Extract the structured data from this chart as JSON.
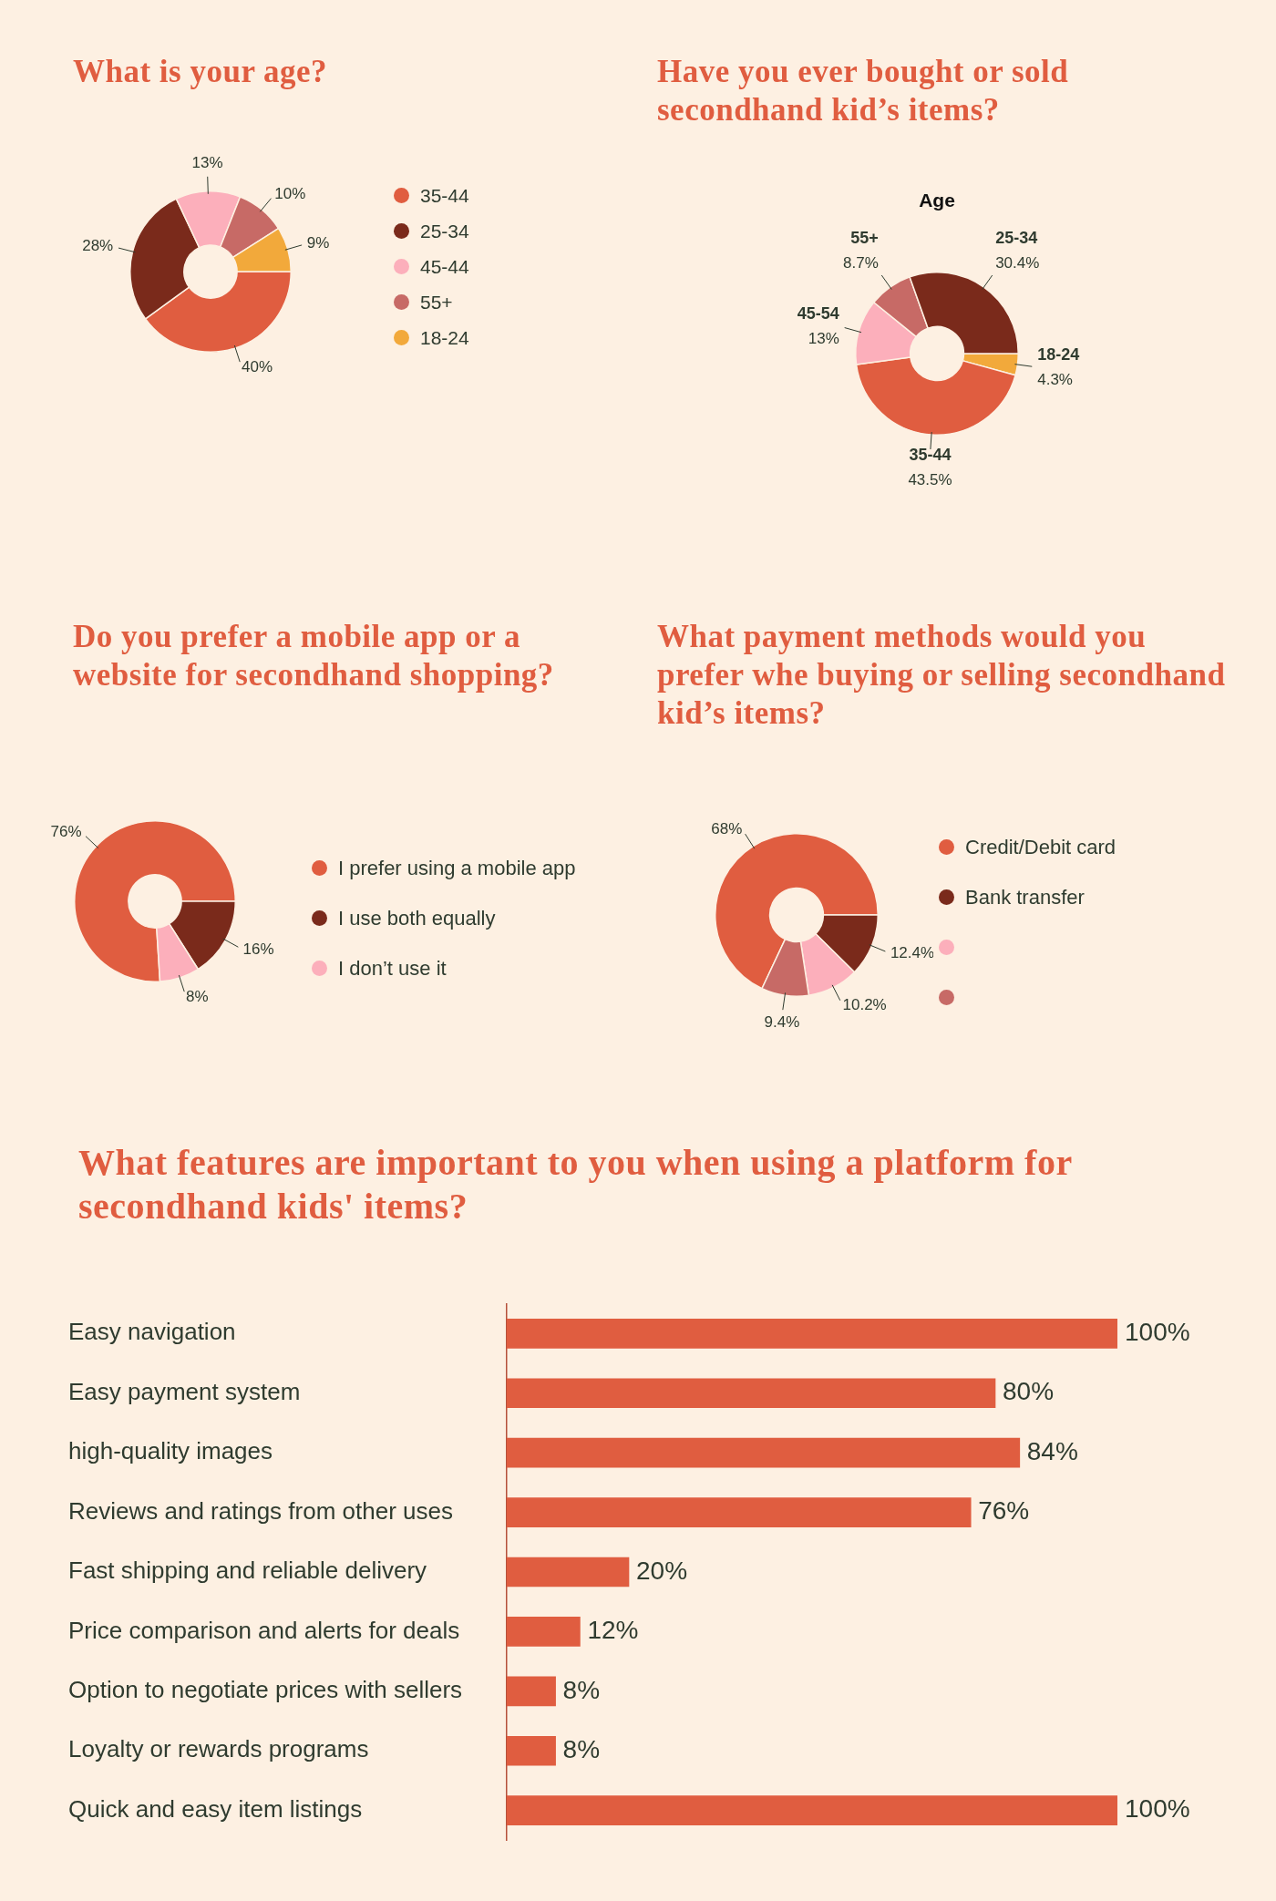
{
  "chart_data": [
    {
      "type": "donut",
      "title": "What is your age?",
      "categories": [
        "35-44",
        "25-34",
        "45-44",
        "55+",
        "18-24"
      ],
      "values": [
        40,
        28,
        13,
        10,
        9
      ],
      "colors": [
        "#e05d40",
        "#7a2a1b",
        "#fcafbb",
        "#c76a66",
        "#f2a93b"
      ],
      "value_labels": [
        "40%",
        "28%",
        "13%",
        "10%",
        "9%"
      ],
      "legend": "right"
    },
    {
      "type": "donut",
      "title": "Have you ever bought or sold secondhand kid’s items?",
      "subtitle": "Age",
      "categories": [
        "18-24",
        "35-44",
        "45-54",
        "55+",
        "25-34"
      ],
      "values": [
        4.3,
        43.5,
        13,
        8.7,
        30.4
      ],
      "colors": [
        "#f2a93b",
        "#e05d40",
        "#fcafbb",
        "#c76a66",
        "#7a2a1b"
      ],
      "value_labels": [
        "4.3%",
        "43.5%",
        "13%",
        "8.7%",
        "30.4%"
      ]
    },
    {
      "type": "donut",
      "title": "Do you prefer a mobile app or a website for secondhand shopping?",
      "categories": [
        "I prefer using a mobile app",
        "I use both equally",
        "I don’t use it"
      ],
      "values": [
        76,
        16,
        8
      ],
      "colors": [
        "#e05d40",
        "#7a2a1b",
        "#fcafbb"
      ],
      "value_labels": [
        "76%",
        "16%",
        "8%"
      ],
      "legend": "right"
    },
    {
      "type": "donut",
      "title": "What payment methods would you prefer whe buying or selling secondhand kid’s items?",
      "categories": [
        "Credit/Debit card",
        "Bank transfer",
        null,
        null
      ],
      "values": [
        68,
        12.4,
        10.2,
        9.4
      ],
      "colors": [
        "#e05d40",
        "#7a2a1b",
        "#fcafbb",
        "#c76a66"
      ],
      "value_labels": [
        "68%",
        "12.4%",
        "10.2%",
        "9.4%"
      ],
      "legend": "right"
    },
    {
      "type": "bar",
      "orientation": "horizontal",
      "title": "What features are important to you when using a platform for secondhand kids' items?",
      "categories": [
        "Easy navigation",
        "Easy payment system",
        "high-quality images",
        "Reviews and ratings from other uses",
        "Fast shipping and reliable delivery",
        "Price comparison and alerts for deals",
        "Option to negotiate prices with sellers",
        "Loyalty or rewards programs",
        "Quick and easy item listings"
      ],
      "values": [
        100,
        80,
        84,
        76,
        20,
        12,
        8,
        8,
        100
      ],
      "color": "#e05d40",
      "xlim": [
        0,
        100
      ],
      "value_labels": [
        "100%",
        "80%",
        "84%",
        "76%",
        "20%",
        "12%",
        "8%",
        "8%",
        "100%"
      ],
      "tick_labels": "y",
      "grid": false,
      "legend": false
    }
  ]
}
